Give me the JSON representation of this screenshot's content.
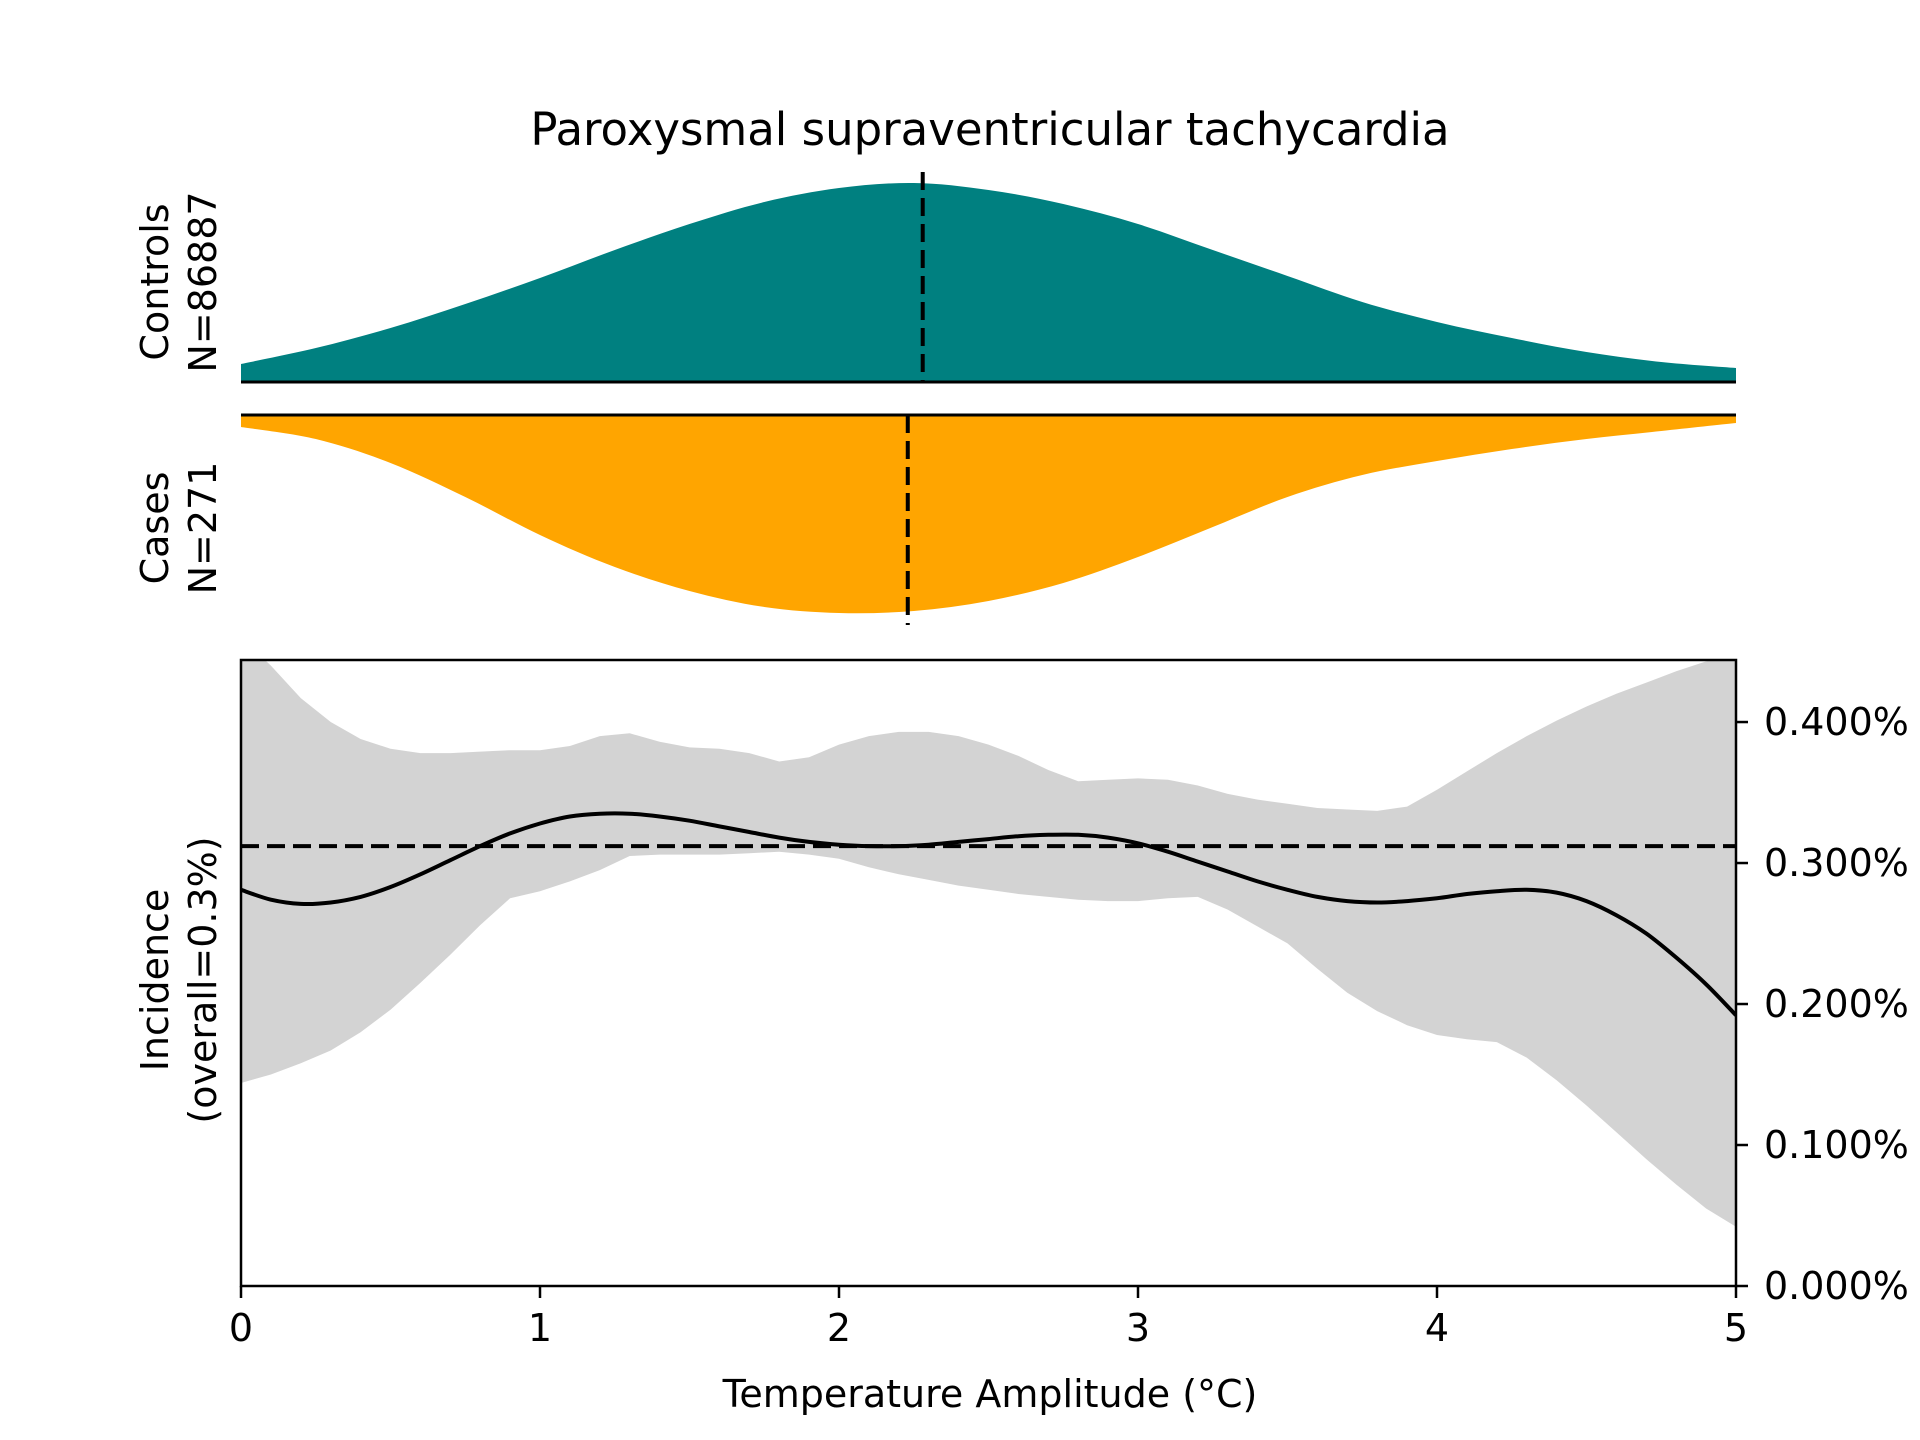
{
  "chart_data": {
    "type": "area",
    "title": "Paroxysmal supraventricular tachycardia",
    "xlabel": "Temperature Amplitude (°C)",
    "xlim": [
      0,
      5
    ],
    "x_ticks": [
      0,
      1,
      2,
      3,
      4,
      5
    ],
    "x_tick_labels": [
      "0",
      "1",
      "2",
      "3",
      "4",
      "5"
    ],
    "colors": {
      "controls": "#008080",
      "cases": "#FFA500",
      "ci": "#D3D3D3",
      "line": "#000000"
    },
    "density_x": [
      0,
      0.25,
      0.5,
      0.75,
      1,
      1.25,
      1.5,
      1.75,
      2,
      2.25,
      2.5,
      2.75,
      3,
      3.25,
      3.5,
      3.75,
      4,
      4.25,
      4.5,
      4.75,
      5
    ],
    "controls": {
      "label_line1": "Controls",
      "label_line2": "N=86887",
      "mean": 2.28,
      "density": [
        0.09,
        0.17,
        0.27,
        0.39,
        0.52,
        0.66,
        0.79,
        0.9,
        0.97,
        0.995,
        0.96,
        0.89,
        0.79,
        0.66,
        0.53,
        0.4,
        0.3,
        0.22,
        0.15,
        0.1,
        0.07
      ]
    },
    "cases": {
      "label_line1": "Cases",
      "label_line2": "N=271",
      "mean": 2.23,
      "density": [
        0.06,
        0.12,
        0.24,
        0.41,
        0.6,
        0.76,
        0.88,
        0.96,
        0.99,
        0.98,
        0.93,
        0.84,
        0.71,
        0.56,
        0.41,
        0.3,
        0.23,
        0.17,
        0.12,
        0.08,
        0.04
      ]
    },
    "incidence": {
      "ylabel_line1": "Incidence",
      "ylabel_line2": "(overall=0.3%)",
      "ylim": [
        0,
        0.00444
      ],
      "y_ticks": [
        0,
        0.001,
        0.002,
        0.003,
        0.004
      ],
      "y_tick_labels": [
        "0.000%",
        "0.100%",
        "0.200%",
        "0.300%",
        "0.400%"
      ],
      "overall": 0.00312,
      "x": [
        0,
        0.1,
        0.2,
        0.3,
        0.4,
        0.5,
        0.6,
        0.7,
        0.8,
        0.9,
        1.0,
        1.1,
        1.2,
        1.3,
        1.4,
        1.5,
        1.6,
        1.7,
        1.8,
        1.9,
        2.0,
        2.1,
        2.2,
        2.3,
        2.4,
        2.5,
        2.6,
        2.7,
        2.8,
        2.9,
        3.0,
        3.1,
        3.2,
        3.3,
        3.4,
        3.5,
        3.6,
        3.7,
        3.8,
        3.9,
        4.0,
        4.1,
        4.2,
        4.3,
        4.4,
        4.5,
        4.6,
        4.7,
        4.8,
        4.9,
        5.0
      ],
      "y": [
        0.00281,
        0.00274,
        0.00271,
        0.00272,
        0.00276,
        0.00283,
        0.00292,
        0.00302,
        0.00312,
        0.00321,
        0.00328,
        0.00333,
        0.00335,
        0.00335,
        0.00333,
        0.0033,
        0.00326,
        0.00322,
        0.00318,
        0.00315,
        0.00313,
        0.00312,
        0.00312,
        0.00313,
        0.00315,
        0.00317,
        0.00319,
        0.0032,
        0.0032,
        0.00318,
        0.00314,
        0.00308,
        0.00301,
        0.00294,
        0.00287,
        0.00281,
        0.00276,
        0.00273,
        0.00272,
        0.00273,
        0.00275,
        0.00278,
        0.0028,
        0.00281,
        0.00279,
        0.00273,
        0.00263,
        0.0025,
        0.00233,
        0.00214,
        0.00192
      ],
      "ci_upper": [
        0.0046,
        0.0044,
        0.00417,
        0.004,
        0.00388,
        0.00381,
        0.00378,
        0.00378,
        0.00379,
        0.0038,
        0.0038,
        0.00383,
        0.0039,
        0.00392,
        0.00386,
        0.00382,
        0.00381,
        0.00378,
        0.00372,
        0.00375,
        0.00384,
        0.0039,
        0.00393,
        0.00393,
        0.0039,
        0.00384,
        0.00376,
        0.00366,
        0.00358,
        0.00359,
        0.0036,
        0.00359,
        0.00355,
        0.00349,
        0.00345,
        0.00342,
        0.00339,
        0.00338,
        0.00337,
        0.0034,
        0.00352,
        0.00365,
        0.00378,
        0.0039,
        0.00401,
        0.00411,
        0.0042,
        0.00428,
        0.00436,
        0.00443,
        0.0045
      ],
      "ci_lower": [
        0.00144,
        0.0015,
        0.00158,
        0.00167,
        0.0018,
        0.00196,
        0.00215,
        0.00235,
        0.00256,
        0.00275,
        0.0028,
        0.00287,
        0.00295,
        0.00305,
        0.00306,
        0.00306,
        0.00306,
        0.00307,
        0.00308,
        0.00306,
        0.00303,
        0.00297,
        0.00292,
        0.00288,
        0.00284,
        0.00281,
        0.00278,
        0.00276,
        0.00274,
        0.00273,
        0.00273,
        0.00275,
        0.00276,
        0.00267,
        0.00255,
        0.00243,
        0.00225,
        0.00208,
        0.00195,
        0.00185,
        0.00178,
        0.00175,
        0.00173,
        0.00162,
        0.00146,
        0.00128,
        0.00109,
        0.0009,
        0.00072,
        0.00055,
        0.00042
      ]
    }
  }
}
